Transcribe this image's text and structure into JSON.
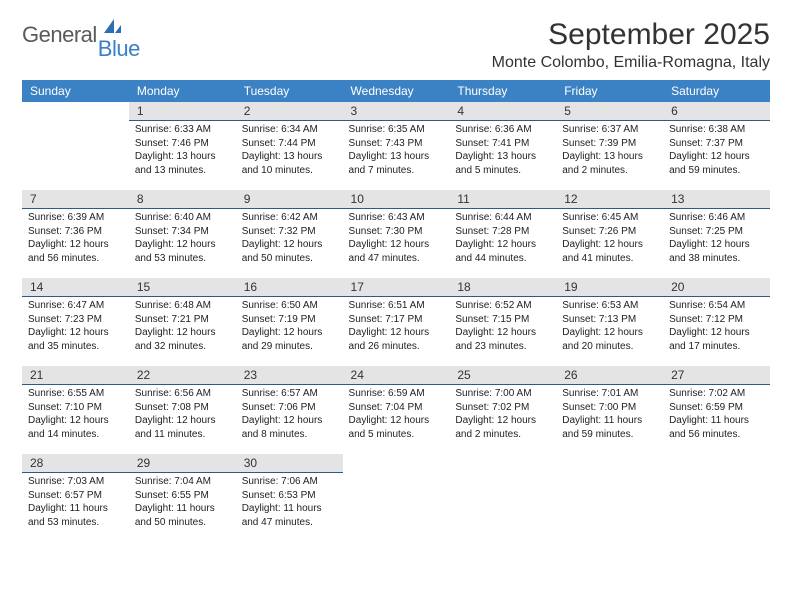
{
  "logo": {
    "word1": "General",
    "word2": "Blue",
    "color1": "#5a5a5a",
    "color2": "#3b7fc4"
  },
  "title": "September 2025",
  "location": "Monte Colombo, Emilia-Romagna, Italy",
  "colors": {
    "header_bg": "#3b82c4",
    "header_text": "#ffffff",
    "daynum_bg": "#e4e4e4",
    "daynum_border": "#2b5a8a",
    "body_text": "#222222",
    "page_bg": "#ffffff"
  },
  "weekdays": [
    "Sunday",
    "Monday",
    "Tuesday",
    "Wednesday",
    "Thursday",
    "Friday",
    "Saturday"
  ],
  "start_offset": 1,
  "days": [
    {
      "n": 1,
      "sunrise": "6:33 AM",
      "sunset": "7:46 PM",
      "daylight": "13 hours and 13 minutes."
    },
    {
      "n": 2,
      "sunrise": "6:34 AM",
      "sunset": "7:44 PM",
      "daylight": "13 hours and 10 minutes."
    },
    {
      "n": 3,
      "sunrise": "6:35 AM",
      "sunset": "7:43 PM",
      "daylight": "13 hours and 7 minutes."
    },
    {
      "n": 4,
      "sunrise": "6:36 AM",
      "sunset": "7:41 PM",
      "daylight": "13 hours and 5 minutes."
    },
    {
      "n": 5,
      "sunrise": "6:37 AM",
      "sunset": "7:39 PM",
      "daylight": "13 hours and 2 minutes."
    },
    {
      "n": 6,
      "sunrise": "6:38 AM",
      "sunset": "7:37 PM",
      "daylight": "12 hours and 59 minutes."
    },
    {
      "n": 7,
      "sunrise": "6:39 AM",
      "sunset": "7:36 PM",
      "daylight": "12 hours and 56 minutes."
    },
    {
      "n": 8,
      "sunrise": "6:40 AM",
      "sunset": "7:34 PM",
      "daylight": "12 hours and 53 minutes."
    },
    {
      "n": 9,
      "sunrise": "6:42 AM",
      "sunset": "7:32 PM",
      "daylight": "12 hours and 50 minutes."
    },
    {
      "n": 10,
      "sunrise": "6:43 AM",
      "sunset": "7:30 PM",
      "daylight": "12 hours and 47 minutes."
    },
    {
      "n": 11,
      "sunrise": "6:44 AM",
      "sunset": "7:28 PM",
      "daylight": "12 hours and 44 minutes."
    },
    {
      "n": 12,
      "sunrise": "6:45 AM",
      "sunset": "7:26 PM",
      "daylight": "12 hours and 41 minutes."
    },
    {
      "n": 13,
      "sunrise": "6:46 AM",
      "sunset": "7:25 PM",
      "daylight": "12 hours and 38 minutes."
    },
    {
      "n": 14,
      "sunrise": "6:47 AM",
      "sunset": "7:23 PM",
      "daylight": "12 hours and 35 minutes."
    },
    {
      "n": 15,
      "sunrise": "6:48 AM",
      "sunset": "7:21 PM",
      "daylight": "12 hours and 32 minutes."
    },
    {
      "n": 16,
      "sunrise": "6:50 AM",
      "sunset": "7:19 PM",
      "daylight": "12 hours and 29 minutes."
    },
    {
      "n": 17,
      "sunrise": "6:51 AM",
      "sunset": "7:17 PM",
      "daylight": "12 hours and 26 minutes."
    },
    {
      "n": 18,
      "sunrise": "6:52 AM",
      "sunset": "7:15 PM",
      "daylight": "12 hours and 23 minutes."
    },
    {
      "n": 19,
      "sunrise": "6:53 AM",
      "sunset": "7:13 PM",
      "daylight": "12 hours and 20 minutes."
    },
    {
      "n": 20,
      "sunrise": "6:54 AM",
      "sunset": "7:12 PM",
      "daylight": "12 hours and 17 minutes."
    },
    {
      "n": 21,
      "sunrise": "6:55 AM",
      "sunset": "7:10 PM",
      "daylight": "12 hours and 14 minutes."
    },
    {
      "n": 22,
      "sunrise": "6:56 AM",
      "sunset": "7:08 PM",
      "daylight": "12 hours and 11 minutes."
    },
    {
      "n": 23,
      "sunrise": "6:57 AM",
      "sunset": "7:06 PM",
      "daylight": "12 hours and 8 minutes."
    },
    {
      "n": 24,
      "sunrise": "6:59 AM",
      "sunset": "7:04 PM",
      "daylight": "12 hours and 5 minutes."
    },
    {
      "n": 25,
      "sunrise": "7:00 AM",
      "sunset": "7:02 PM",
      "daylight": "12 hours and 2 minutes."
    },
    {
      "n": 26,
      "sunrise": "7:01 AM",
      "sunset": "7:00 PM",
      "daylight": "11 hours and 59 minutes."
    },
    {
      "n": 27,
      "sunrise": "7:02 AM",
      "sunset": "6:59 PM",
      "daylight": "11 hours and 56 minutes."
    },
    {
      "n": 28,
      "sunrise": "7:03 AM",
      "sunset": "6:57 PM",
      "daylight": "11 hours and 53 minutes."
    },
    {
      "n": 29,
      "sunrise": "7:04 AM",
      "sunset": "6:55 PM",
      "daylight": "11 hours and 50 minutes."
    },
    {
      "n": 30,
      "sunrise": "7:06 AM",
      "sunset": "6:53 PM",
      "daylight": "11 hours and 47 minutes."
    }
  ],
  "labels": {
    "sunrise": "Sunrise:",
    "sunset": "Sunset:",
    "daylight": "Daylight:"
  }
}
